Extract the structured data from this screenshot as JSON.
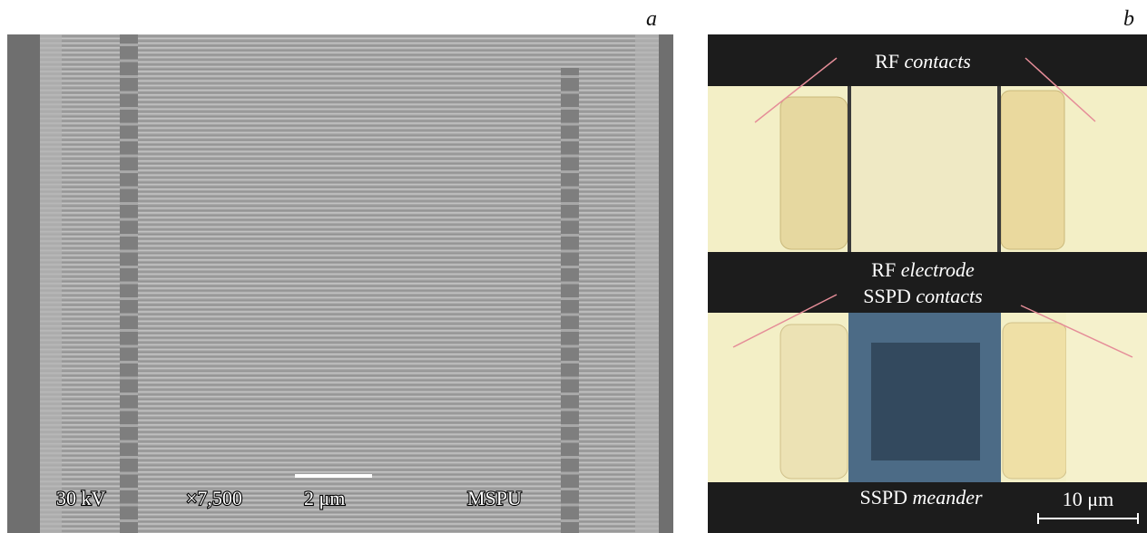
{
  "panel_a": {
    "letter": "a",
    "labels": [
      "30 kV",
      "×7,500",
      "2 μm",
      "MSPU"
    ]
  },
  "panel_b": {
    "letter": "b",
    "labels": [
      {
        "plain": "RF",
        "italic": "contacts"
      },
      {
        "plain": "RF",
        "italic": "electrode"
      },
      {
        "plain": "SSPD",
        "italic": "contacts"
      },
      {
        "plain": "SSPD",
        "italic": "meander"
      }
    ],
    "scale": "10 μm"
  }
}
